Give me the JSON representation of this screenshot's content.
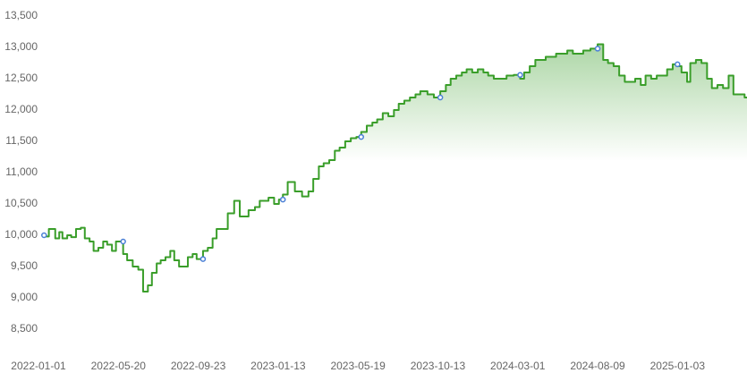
{
  "chart_data": {
    "type": "line",
    "step": true,
    "color": "#3a9e2a",
    "fill_color": "#3a9e2a",
    "x": [
      7,
      13,
      21,
      26,
      30,
      36,
      41,
      47,
      53,
      58,
      64,
      69,
      75,
      81,
      86,
      92,
      97,
      106,
      111,
      118,
      125,
      131,
      137,
      142,
      148,
      153,
      159,
      165,
      170,
      176,
      181,
      187,
      193,
      198,
      206,
      212,
      218,
      223,
      230,
      237,
      245,
      252,
      256,
      263,
      271,
      277,
      282,
      288,
      295,
      301,
      306,
      312,
      321,
      330,
      338,
      344,
      351,
      357,
      364,
      371,
      377,
      384,
      391,
      398,
      404,
      411,
      418,
      424,
      431,
      438,
      445,
      451,
      458,
      465,
      472,
      478,
      487,
      495,
      503,
      510,
      516,
      523,
      530,
      536,
      543,
      550,
      557,
      563,
      570,
      577,
      586,
      595,
      603,
      608,
      615,
      622,
      628,
      635,
      642,
      648,
      655,
      662,
      669,
      675,
      682,
      691,
      700,
      707,
      713,
      720,
      727,
      734,
      740,
      747,
      754,
      760,
      767,
      774,
      781,
      787,
      794,
      800,
      805,
      812,
      816,
      823,
      830,
      837,
      843,
      850,
      857,
      864,
      870,
      877,
      884,
      887
    ],
    "values": [
      10000,
      9980,
      10100,
      9950,
      10050,
      9950,
      10000,
      9970,
      10100,
      10120,
      9950,
      9900,
      9750,
      9800,
      9900,
      9850,
      9750,
      9900,
      9700,
      9600,
      9500,
      9450,
      9100,
      9200,
      9400,
      9550,
      9600,
      9650,
      9750,
      9600,
      9500,
      9500,
      9650,
      9700,
      9620,
      9750,
      9800,
      9950,
      10100,
      10100,
      10350,
      10550,
      10300,
      10300,
      10400,
      10450,
      10550,
      10550,
      10600,
      10500,
      10570,
      10650,
      10850,
      10700,
      10620,
      10700,
      10900,
      11100,
      11150,
      11200,
      11350,
      11400,
      11500,
      11550,
      11570,
      11650,
      11750,
      11800,
      11850,
      11950,
      11900,
      12000,
      12100,
      12150,
      12200,
      12250,
      12300,
      12250,
      12200,
      12300,
      12400,
      12500,
      12550,
      12600,
      12650,
      12600,
      12650,
      12600,
      12550,
      12500,
      12500,
      12550,
      12560,
      12500,
      12600,
      12700,
      12800,
      12800,
      12850,
      12850,
      12900,
      12900,
      12950,
      12900,
      12900,
      12950,
      12980,
      13050,
      12800,
      12750,
      12700,
      12550,
      12450,
      12450,
      12500,
      12400,
      12550,
      12500,
      12550,
      12550,
      12650,
      12730,
      12700,
      12600,
      12450,
      12750,
      12800,
      12750,
      12500,
      12350,
      12400,
      12350,
      12550,
      12250,
      12250,
      12200
    ],
    "markers": {
      "color": "#4a7fd6",
      "x": [
        7,
        106,
        206,
        306,
        404,
        503,
        603,
        700,
        800
      ],
      "values": [
        10000,
        9900,
        9620,
        10570,
        11570,
        12200,
        12560,
        12980,
        12730
      ]
    },
    "xlim": [
      0,
      887
    ],
    "xticks": [
      {
        "value": 0,
        "label": "2022-01-01"
      },
      {
        "value": 100,
        "label": "2022-05-20"
      },
      {
        "value": 200,
        "label": "2022-09-23"
      },
      {
        "value": 300,
        "label": "2023-01-13"
      },
      {
        "value": 400,
        "label": "2023-05-19"
      },
      {
        "value": 500,
        "label": "2023-10-13"
      },
      {
        "value": 600,
        "label": "2024-03-01"
      },
      {
        "value": 700,
        "label": "2024-08-09"
      },
      {
        "value": 800,
        "label": "2025-01-03"
      }
    ],
    "ylim": [
      8000,
      13750
    ],
    "yticks": [
      {
        "value": 8500,
        "label": "8,500"
      },
      {
        "value": 9000,
        "label": "9,000"
      },
      {
        "value": 9500,
        "label": "9,500"
      },
      {
        "value": 10000,
        "label": "10,000"
      },
      {
        "value": 10500,
        "label": "10,500"
      },
      {
        "value": 11000,
        "label": "11,000"
      },
      {
        "value": 11500,
        "label": "11,500"
      },
      {
        "value": 12000,
        "label": "12,000"
      },
      {
        "value": 12500,
        "label": "12,500"
      },
      {
        "value": 13000,
        "label": "13,000"
      },
      {
        "value": 13500,
        "label": "13,500"
      }
    ]
  }
}
